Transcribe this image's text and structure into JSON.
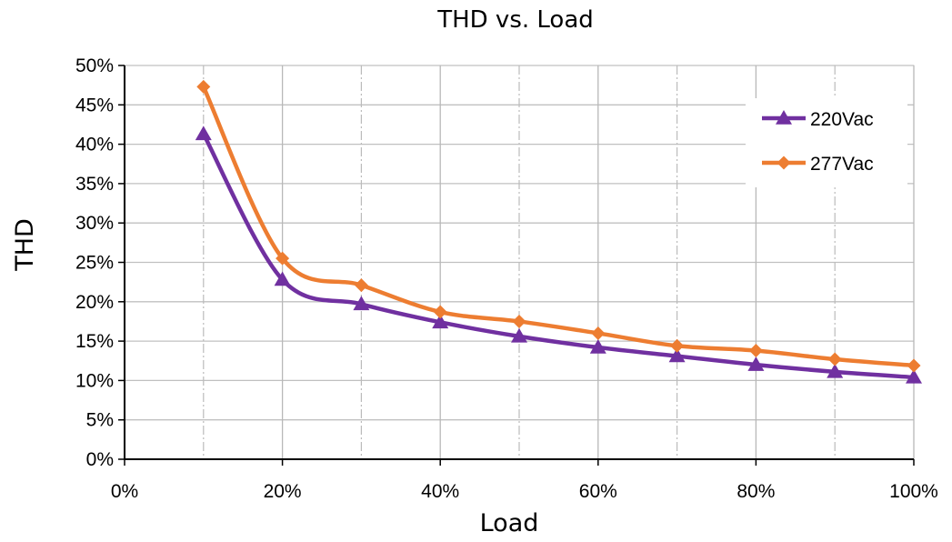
{
  "chart_data": {
    "type": "line",
    "title": "THD vs. Load",
    "xlabel": "Load",
    "ylabel": "THD",
    "xlim": [
      0,
      100
    ],
    "ylim": [
      0,
      50
    ],
    "x_ticks": [
      "0%",
      "20%",
      "40%",
      "60%",
      "80%",
      "100%"
    ],
    "y_ticks": [
      "0%",
      "5%",
      "10%",
      "15%",
      "20%",
      "25%",
      "30%",
      "35%",
      "40%",
      "45%",
      "50%"
    ],
    "grid": true,
    "legend_position": "top-right",
    "x": [
      10,
      20,
      30,
      40,
      50,
      60,
      70,
      80,
      90,
      100
    ],
    "series": [
      {
        "name": "220Vac",
        "marker": "triangle",
        "color": "#7030A0",
        "values": [
          41.3,
          22.8,
          19.7,
          17.4,
          15.6,
          14.2,
          13.1,
          12.0,
          11.1,
          10.4
        ]
      },
      {
        "name": "277Vac",
        "marker": "diamond",
        "color": "#ED7D31",
        "values": [
          47.3,
          25.5,
          22.1,
          18.7,
          17.5,
          16.0,
          14.4,
          13.8,
          12.7,
          11.9
        ]
      }
    ]
  }
}
